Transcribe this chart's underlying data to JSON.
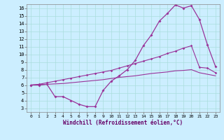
{
  "xlabel": "Windchill (Refroidissement éolien,°C)",
  "background_color": "#cceeff",
  "grid_color": "#aadddd",
  "line_color": "#993399",
  "xlim": [
    -0.5,
    23.5
  ],
  "ylim": [
    2.5,
    16.5
  ],
  "xticks": [
    0,
    1,
    2,
    3,
    4,
    5,
    6,
    7,
    8,
    9,
    10,
    11,
    12,
    13,
    14,
    15,
    16,
    17,
    18,
    19,
    20,
    21,
    22,
    23
  ],
  "yticks": [
    3,
    4,
    5,
    6,
    7,
    8,
    9,
    10,
    11,
    12,
    13,
    14,
    15,
    16
  ],
  "line1_x": [
    0,
    1,
    2,
    3,
    4,
    5,
    6,
    7,
    8,
    9,
    10,
    11,
    12,
    13,
    14,
    15,
    16,
    17,
    18,
    19,
    20,
    21,
    22,
    23
  ],
  "line1_y": [
    6.0,
    6.0,
    6.1,
    4.5,
    4.5,
    4.0,
    3.5,
    3.2,
    3.2,
    5.3,
    6.5,
    7.2,
    8.0,
    9.2,
    11.1,
    12.5,
    14.3,
    15.3,
    16.4,
    16.0,
    16.3,
    14.5,
    11.2,
    8.4
  ],
  "line2_x": [
    0,
    1,
    2,
    3,
    4,
    5,
    6,
    7,
    8,
    9,
    10,
    11,
    12,
    13,
    14,
    15,
    16,
    17,
    18,
    19,
    20,
    21,
    22,
    23
  ],
  "line2_y": [
    6.0,
    6.1,
    6.3,
    6.5,
    6.7,
    6.9,
    7.1,
    7.3,
    7.5,
    7.7,
    7.9,
    8.2,
    8.5,
    8.8,
    9.1,
    9.4,
    9.7,
    10.1,
    10.4,
    10.8,
    11.1,
    8.3,
    8.2,
    7.6
  ],
  "line3_x": [
    0,
    1,
    2,
    3,
    4,
    5,
    6,
    7,
    8,
    9,
    10,
    11,
    12,
    13,
    14,
    15,
    16,
    17,
    18,
    19,
    20,
    21,
    22,
    23
  ],
  "line3_y": [
    6.0,
    6.05,
    6.1,
    6.15,
    6.2,
    6.3,
    6.4,
    6.5,
    6.6,
    6.7,
    6.85,
    7.0,
    7.1,
    7.2,
    7.35,
    7.5,
    7.6,
    7.7,
    7.85,
    7.9,
    8.0,
    7.6,
    7.4,
    7.2
  ]
}
